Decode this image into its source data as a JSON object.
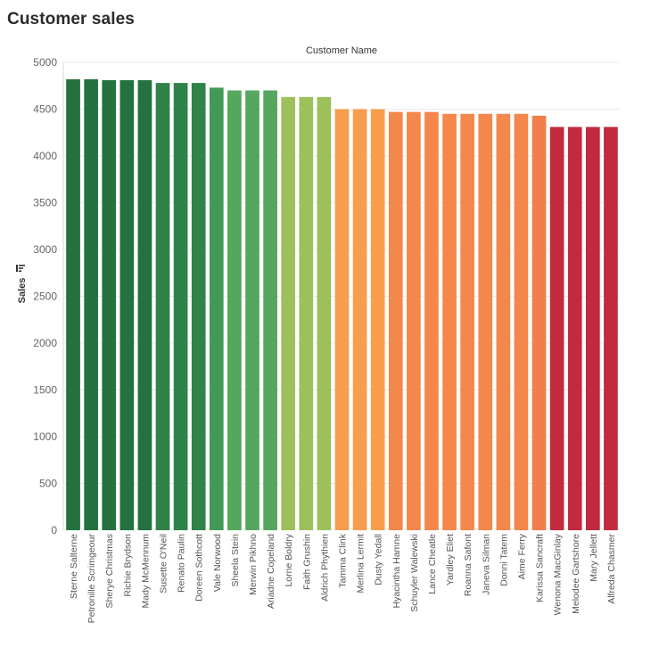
{
  "title": "Customer sales",
  "chart_data": {
    "type": "bar",
    "xlabel": "Customer Name",
    "ylabel": "Sales",
    "ylim": [
      0,
      5000
    ],
    "yticks": [
      0,
      500,
      1000,
      1500,
      2000,
      2500,
      3000,
      3500,
      4000,
      4500,
      5000
    ],
    "grid": true,
    "sorted": "descending",
    "categories": [
      "Sterne Salterne",
      "Petronille Scrimgeour",
      "Sherye Christmas",
      "Richie Brydson",
      "Mady McMennum",
      "Susette O'Neil",
      "Renato Paulin",
      "Doreen Sothcott",
      "Vale Norwood",
      "Sheela Stein",
      "Merwin Pikhno",
      "Ariadne Copeland",
      "Lorne Boldry",
      "Faith Grushin",
      "Aldrich Phythien",
      "Tamma Clink",
      "Merlina Lermit",
      "Dusty Yedall",
      "Hyacintha Hamne",
      "Schuyler Walewski",
      "Lance Cheatle",
      "Yardley Eliet",
      "Roanna Safont",
      "Janeva Silman",
      "Donni Tatem",
      "Aime Ferry",
      "Karissa Sancraft",
      "Wenona MacGinlay",
      "Melodee Gartshore",
      "Mary Jellett",
      "Alfreda Chasmer"
    ],
    "values": [
      4820,
      4820,
      4810,
      4810,
      4810,
      4780,
      4780,
      4780,
      4730,
      4700,
      4700,
      4700,
      4630,
      4630,
      4630,
      4500,
      4500,
      4500,
      4470,
      4470,
      4470,
      4450,
      4450,
      4450,
      4450,
      4450,
      4430,
      4310,
      4310,
      4310,
      4310
    ],
    "colors": [
      "#23723f",
      "#23723f",
      "#23723f",
      "#23723f",
      "#23723f",
      "#2f8248",
      "#2f8248",
      "#2f8248",
      "#419a55",
      "#54a75d",
      "#54a75d",
      "#54a75d",
      "#9cc05b",
      "#9cc05b",
      "#9cc05b",
      "#f79d4c",
      "#f79d4c",
      "#f79d4c",
      "#f4874b",
      "#f4874b",
      "#f4874b",
      "#f4874b",
      "#f4874b",
      "#f4874b",
      "#f4874b",
      "#f4874b",
      "#f07f4c",
      "#c22a3d",
      "#c22a3d",
      "#c22a3d",
      "#c22a3d"
    ]
  }
}
